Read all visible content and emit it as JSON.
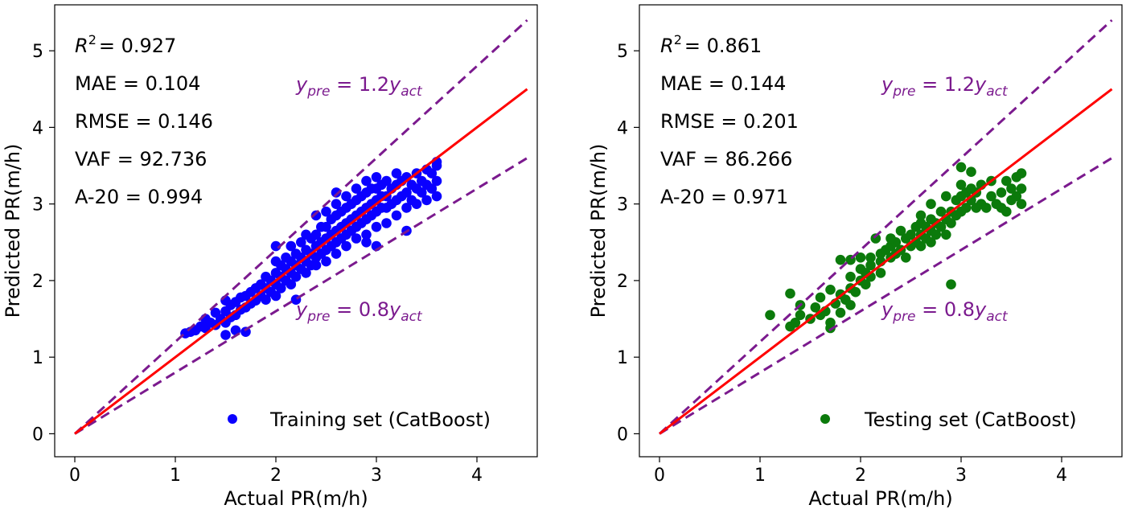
{
  "chart_data": [
    {
      "type": "scatter",
      "xlabel": "Actual PR(m/h)",
      "ylabel": "Predicted PR(m/h)",
      "xlim": [
        -0.2,
        4.6
      ],
      "ylim": [
        -0.3,
        5.6
      ],
      "xticks": [
        "0",
        "1",
        "2",
        "3",
        "4"
      ],
      "yticks": [
        "0",
        "1",
        "2",
        "3",
        "4",
        "5"
      ],
      "colors": {
        "points": "#0a00ff",
        "fit": "#ff0000",
        "bounds": "#7b1a8e"
      },
      "legend": {
        "label": "Training set (CatBoost)",
        "position": "bottom-right"
      },
      "metrics": {
        "r2": "= 0.927",
        "mae": "MAE = 0.104",
        "rmse": "RMSE = 0.146",
        "vaf": "VAF = 92.736",
        "a20": "A-20 = 0.994"
      },
      "lines": {
        "fit": {
          "slope": 1.0,
          "x": [
            0,
            4.5
          ]
        },
        "upper": {
          "slope": 1.2,
          "x": [
            0,
            4.5
          ],
          "coef": "1.2"
        },
        "lower": {
          "slope": 0.8,
          "x": [
            0,
            4.5
          ],
          "coef": "0.8"
        }
      },
      "points": [
        [
          1.1,
          1.31
        ],
        [
          1.15,
          1.33
        ],
        [
          1.2,
          1.35
        ],
        [
          1.25,
          1.4
        ],
        [
          1.3,
          1.38
        ],
        [
          1.3,
          1.5
        ],
        [
          1.35,
          1.45
        ],
        [
          1.4,
          1.42
        ],
        [
          1.4,
          1.58
        ],
        [
          1.45,
          1.5
        ],
        [
          1.5,
          1.29
        ],
        [
          1.5,
          1.45
        ],
        [
          1.5,
          1.6
        ],
        [
          1.5,
          1.74
        ],
        [
          1.55,
          1.52
        ],
        [
          1.55,
          1.68
        ],
        [
          1.6,
          1.55
        ],
        [
          1.6,
          1.72
        ],
        [
          1.65,
          1.62
        ],
        [
          1.65,
          1.78
        ],
        [
          1.7,
          1.33
        ],
        [
          1.7,
          1.65
        ],
        [
          1.7,
          1.8
        ],
        [
          1.75,
          1.7
        ],
        [
          1.75,
          1.85
        ],
        [
          1.8,
          1.74
        ],
        [
          1.8,
          1.9
        ],
        [
          1.85,
          1.8
        ],
        [
          1.85,
          1.95
        ],
        [
          1.9,
          1.75
        ],
        [
          1.9,
          1.9
        ],
        [
          1.9,
          2.05
        ],
        [
          1.95,
          1.85
        ],
        [
          1.95,
          2.0
        ],
        [
          2.0,
          1.8
        ],
        [
          2.0,
          1.95
        ],
        [
          2.0,
          2.1
        ],
        [
          2.0,
          2.25
        ],
        [
          2.0,
          2.45
        ],
        [
          2.05,
          1.9
        ],
        [
          2.05,
          2.05
        ],
        [
          2.05,
          2.2
        ],
        [
          2.1,
          2.0
        ],
        [
          2.1,
          2.15
        ],
        [
          2.1,
          2.3
        ],
        [
          2.15,
          1.95
        ],
        [
          2.15,
          2.1
        ],
        [
          2.15,
          2.25
        ],
        [
          2.15,
          2.45
        ],
        [
          2.2,
          2.05
        ],
        [
          2.2,
          2.2
        ],
        [
          2.2,
          2.35
        ],
        [
          2.25,
          2.15
        ],
        [
          2.25,
          2.3
        ],
        [
          2.25,
          2.5
        ],
        [
          2.3,
          2.1
        ],
        [
          2.3,
          2.25
        ],
        [
          2.3,
          2.4
        ],
        [
          2.3,
          2.6
        ],
        [
          2.35,
          2.2
        ],
        [
          2.35,
          2.35
        ],
        [
          2.35,
          2.55
        ],
        [
          2.4,
          2.2
        ],
        [
          2.4,
          2.3
        ],
        [
          2.4,
          2.45
        ],
        [
          2.4,
          2.6
        ],
        [
          2.4,
          2.85
        ],
        [
          2.45,
          2.35
        ],
        [
          2.45,
          2.5
        ],
        [
          2.45,
          2.7
        ],
        [
          2.5,
          2.25
        ],
        [
          2.5,
          2.4
        ],
        [
          2.5,
          2.55
        ],
        [
          2.5,
          2.7
        ],
        [
          2.5,
          2.9
        ],
        [
          2.55,
          2.45
        ],
        [
          2.55,
          2.6
        ],
        [
          2.55,
          2.8
        ],
        [
          2.6,
          2.35
        ],
        [
          2.6,
          2.5
        ],
        [
          2.6,
          2.65
        ],
        [
          2.6,
          2.85
        ],
        [
          2.6,
          3.0
        ],
        [
          2.6,
          3.15
        ],
        [
          2.65,
          2.55
        ],
        [
          2.65,
          2.7
        ],
        [
          2.65,
          2.9
        ],
        [
          2.7,
          2.45
        ],
        [
          2.7,
          2.6
        ],
        [
          2.7,
          2.75
        ],
        [
          2.7,
          2.95
        ],
        [
          2.7,
          3.1
        ],
        [
          2.75,
          2.65
        ],
        [
          2.75,
          2.8
        ],
        [
          2.75,
          3.0
        ],
        [
          2.8,
          2.55
        ],
        [
          2.8,
          2.7
        ],
        [
          2.8,
          2.85
        ],
        [
          2.8,
          3.05
        ],
        [
          2.8,
          3.2
        ],
        [
          2.85,
          2.75
        ],
        [
          2.85,
          2.9
        ],
        [
          2.85,
          3.1
        ],
        [
          2.9,
          2.6
        ],
        [
          2.9,
          2.8
        ],
        [
          2.9,
          2.95
        ],
        [
          2.9,
          3.15
        ],
        [
          2.9,
          3.3
        ],
        [
          2.95,
          2.85
        ],
        [
          2.95,
          3.0
        ],
        [
          2.95,
          3.2
        ],
        [
          3.0,
          2.45
        ],
        [
          3.0,
          2.7
        ],
        [
          3.0,
          2.9
        ],
        [
          3.0,
          3.05
        ],
        [
          3.0,
          3.2
        ],
        [
          3.0,
          3.35
        ],
        [
          3.05,
          2.95
        ],
        [
          3.05,
          3.1
        ],
        [
          3.05,
          3.25
        ],
        [
          3.1,
          2.75
        ],
        [
          3.1,
          2.95
        ],
        [
          3.1,
          3.1
        ],
        [
          3.1,
          3.3
        ],
        [
          3.15,
          3.0
        ],
        [
          3.15,
          3.2
        ],
        [
          3.2,
          2.85
        ],
        [
          3.2,
          3.05
        ],
        [
          3.2,
          3.25
        ],
        [
          3.2,
          3.4
        ],
        [
          3.25,
          3.1
        ],
        [
          3.25,
          3.3
        ],
        [
          3.3,
          2.65
        ],
        [
          3.3,
          2.95
        ],
        [
          3.3,
          3.15
        ],
        [
          3.3,
          3.35
        ],
        [
          3.35,
          3.05
        ],
        [
          3.35,
          3.25
        ],
        [
          3.4,
          3.0
        ],
        [
          3.4,
          3.2
        ],
        [
          3.4,
          3.4
        ],
        [
          3.45,
          3.15
        ],
        [
          3.45,
          3.3
        ],
        [
          3.5,
          3.05
        ],
        [
          3.5,
          3.25
        ],
        [
          3.5,
          3.45
        ],
        [
          3.55,
          3.2
        ],
        [
          3.55,
          3.4
        ],
        [
          3.6,
          3.1
        ],
        [
          3.6,
          3.3
        ],
        [
          3.6,
          3.5
        ],
        [
          3.6,
          3.55
        ],
        [
          2.2,
          1.75
        ],
        [
          1.6,
          1.35
        ],
        [
          2.9,
          2.5
        ]
      ]
    },
    {
      "type": "scatter",
      "xlabel": "Actual PR(m/h)",
      "ylabel": "Predicted PR(m/h)",
      "xlim": [
        -0.2,
        4.6
      ],
      "ylim": [
        -0.3,
        5.6
      ],
      "xticks": [
        "0",
        "1",
        "2",
        "3",
        "4"
      ],
      "yticks": [
        "0",
        "1",
        "2",
        "3",
        "4",
        "5"
      ],
      "colors": {
        "points": "#0b7a0b",
        "fit": "#ff0000",
        "bounds": "#7b1a8e"
      },
      "legend": {
        "label": "Testing set (CatBoost)",
        "position": "bottom-right"
      },
      "metrics": {
        "r2": "= 0.861",
        "mae": "MAE = 0.144",
        "rmse": "RMSE = 0.201",
        "vaf": "VAF = 86.266",
        "a20": "A-20 = 0.971"
      },
      "lines": {
        "fit": {
          "slope": 1.0,
          "x": [
            0,
            4.5
          ]
        },
        "upper": {
          "slope": 1.2,
          "x": [
            0,
            4.5
          ],
          "coef": "1.2"
        },
        "lower": {
          "slope": 0.8,
          "x": [
            0,
            4.5
          ],
          "coef": "0.8"
        }
      },
      "points": [
        [
          1.1,
          1.55
        ],
        [
          1.3,
          1.83
        ],
        [
          1.3,
          1.4
        ],
        [
          1.35,
          1.45
        ],
        [
          1.4,
          1.55
        ],
        [
          1.4,
          1.68
        ],
        [
          1.5,
          1.5
        ],
        [
          1.55,
          1.65
        ],
        [
          1.6,
          1.55
        ],
        [
          1.6,
          1.78
        ],
        [
          1.65,
          1.6
        ],
        [
          1.7,
          1.45
        ],
        [
          1.7,
          1.88
        ],
        [
          1.7,
          1.38
        ],
        [
          1.75,
          1.7
        ],
        [
          1.8,
          1.58
        ],
        [
          1.8,
          1.82
        ],
        [
          1.8,
          2.27
        ],
        [
          1.85,
          1.75
        ],
        [
          1.9,
          1.68
        ],
        [
          1.9,
          1.9
        ],
        [
          1.9,
          2.05
        ],
        [
          1.9,
          2.27
        ],
        [
          1.95,
          1.85
        ],
        [
          2.0,
          2.0
        ],
        [
          2.0,
          2.15
        ],
        [
          2.0,
          2.3
        ],
        [
          2.05,
          1.95
        ],
        [
          2.05,
          2.1
        ],
        [
          2.1,
          2.05
        ],
        [
          2.1,
          2.2
        ],
        [
          2.1,
          2.3
        ],
        [
          2.15,
          2.55
        ],
        [
          2.2,
          2.25
        ],
        [
          2.2,
          2.1
        ],
        [
          2.2,
          2.35
        ],
        [
          2.25,
          2.4
        ],
        [
          2.3,
          2.3
        ],
        [
          2.3,
          2.45
        ],
        [
          2.35,
          2.35
        ],
        [
          2.35,
          2.5
        ],
        [
          2.4,
          2.4
        ],
        [
          2.45,
          2.3
        ],
        [
          2.45,
          2.55
        ],
        [
          2.5,
          2.45
        ],
        [
          2.5,
          2.6
        ],
        [
          2.55,
          2.5
        ],
        [
          2.55,
          2.7
        ],
        [
          2.6,
          2.45
        ],
        [
          2.6,
          2.6
        ],
        [
          2.6,
          2.75
        ],
        [
          2.6,
          2.85
        ],
        [
          2.65,
          2.55
        ],
        [
          2.65,
          2.7
        ],
        [
          2.7,
          2.5
        ],
        [
          2.7,
          2.65
        ],
        [
          2.7,
          2.8
        ],
        [
          2.7,
          3.0
        ],
        [
          2.75,
          2.6
        ],
        [
          2.75,
          2.75
        ],
        [
          2.8,
          2.7
        ],
        [
          2.8,
          2.9
        ],
        [
          2.85,
          2.6
        ],
        [
          2.85,
          2.8
        ],
        [
          2.85,
          3.1
        ],
        [
          2.9,
          2.75
        ],
        [
          2.9,
          2.9
        ],
        [
          2.9,
          1.95
        ],
        [
          2.95,
          2.85
        ],
        [
          2.95,
          3.05
        ],
        [
          3.0,
          2.9
        ],
        [
          3.0,
          3.1
        ],
        [
          3.0,
          3.25
        ],
        [
          3.0,
          3.48
        ],
        [
          3.05,
          2.95
        ],
        [
          3.05,
          3.15
        ],
        [
          3.1,
          3.05
        ],
        [
          3.1,
          3.2
        ],
        [
          3.1,
          3.42
        ],
        [
          3.15,
          2.95
        ],
        [
          3.15,
          3.15
        ],
        [
          3.2,
          3.0
        ],
        [
          3.2,
          3.25
        ],
        [
          3.25,
          2.95
        ],
        [
          3.3,
          3.1
        ],
        [
          3.3,
          3.3
        ],
        [
          3.35,
          3.0
        ],
        [
          3.4,
          2.95
        ],
        [
          3.4,
          3.15
        ],
        [
          3.45,
          2.9
        ],
        [
          3.45,
          3.3
        ],
        [
          3.5,
          3.05
        ],
        [
          3.5,
          3.2
        ],
        [
          3.55,
          3.1
        ],
        [
          3.55,
          3.35
        ],
        [
          3.6,
          3.0
        ],
        [
          3.6,
          3.2
        ],
        [
          3.6,
          3.4
        ],
        [
          2.3,
          2.55
        ],
        [
          2.4,
          2.65
        ]
      ]
    }
  ]
}
